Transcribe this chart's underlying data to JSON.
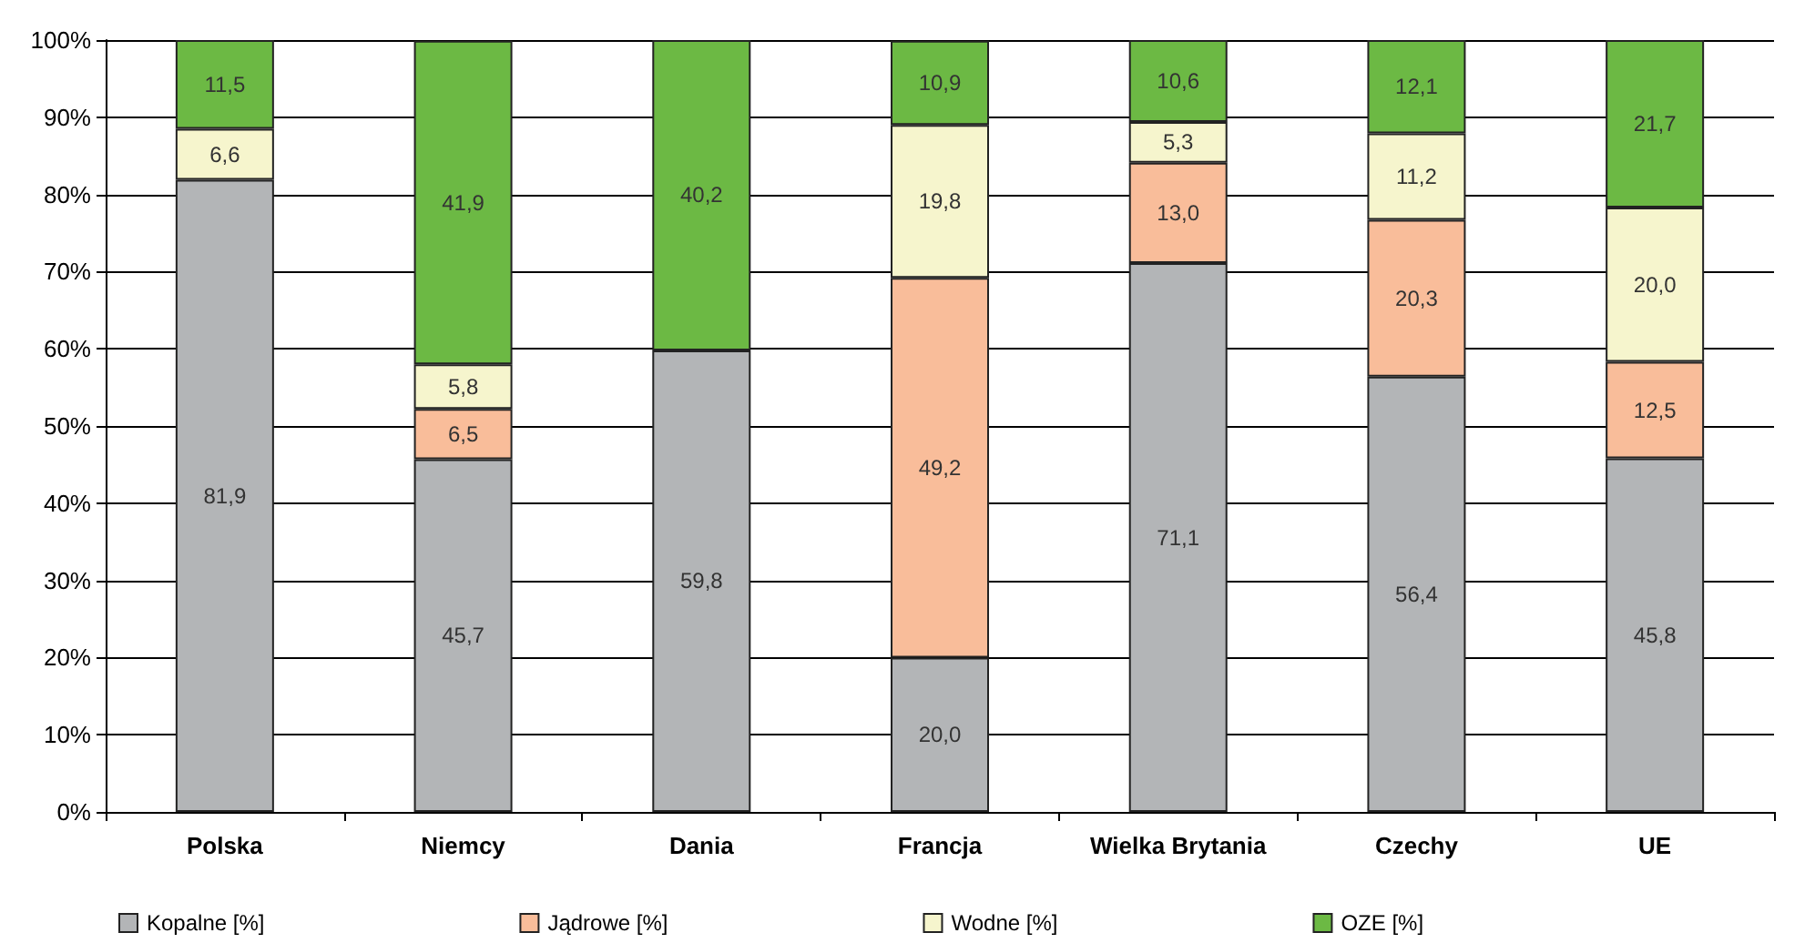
{
  "chart_data": {
    "type": "bar",
    "stacked": true,
    "categories": [
      "Polska",
      "Niemcy",
      "Dania",
      "Francja",
      "Wielka Brytania",
      "Czechy",
      "UE"
    ],
    "series": [
      {
        "name": "Kopalne [%]",
        "color": "#b3b5b7",
        "values": [
          81.9,
          45.7,
          59.8,
          20.0,
          71.1,
          56.4,
          45.8
        ],
        "value_labels": [
          "81,9",
          "45,7",
          "59,8",
          "20,0",
          "71,1",
          "56,4",
          "45,8"
        ]
      },
      {
        "name": "Jądrowe [%]",
        "color": "#f9bd9a",
        "values": [
          null,
          6.5,
          null,
          49.2,
          13.0,
          20.3,
          12.5
        ],
        "value_labels": [
          null,
          "6,5",
          null,
          "49,2",
          "13,0",
          "20,3",
          "12,5"
        ]
      },
      {
        "name": "Wodne [%]",
        "color": "#f6f5cd",
        "values": [
          6.6,
          5.8,
          null,
          19.8,
          5.3,
          11.2,
          20.0
        ],
        "value_labels": [
          "6,6",
          "5,8",
          null,
          "19,8",
          "5,3",
          "11,2",
          "20,0"
        ]
      },
      {
        "name": "OZE [%]",
        "color": "#6cb944",
        "values": [
          11.5,
          41.9,
          40.2,
          10.9,
          10.6,
          12.1,
          21.7
        ],
        "value_labels": [
          "11,5",
          "41,9",
          "40,2",
          "10,9",
          "10,6",
          "12,1",
          "21,7"
        ]
      }
    ],
    "ylim": [
      0,
      100
    ],
    "yticks": [
      {
        "value": 0,
        "label": "0%"
      },
      {
        "value": 10,
        "label": "10%"
      },
      {
        "value": 20,
        "label": "20%"
      },
      {
        "value": 30,
        "label": "30%"
      },
      {
        "value": 40,
        "label": "40%"
      },
      {
        "value": 50,
        "label": "50%"
      },
      {
        "value": 60,
        "label": "60%"
      },
      {
        "value": 70,
        "label": "70%"
      },
      {
        "value": 80,
        "label": "80%"
      },
      {
        "value": 90,
        "label": "90%"
      },
      {
        "value": 100,
        "label": "100%"
      }
    ],
    "grid": "y",
    "legend": "bottom"
  }
}
